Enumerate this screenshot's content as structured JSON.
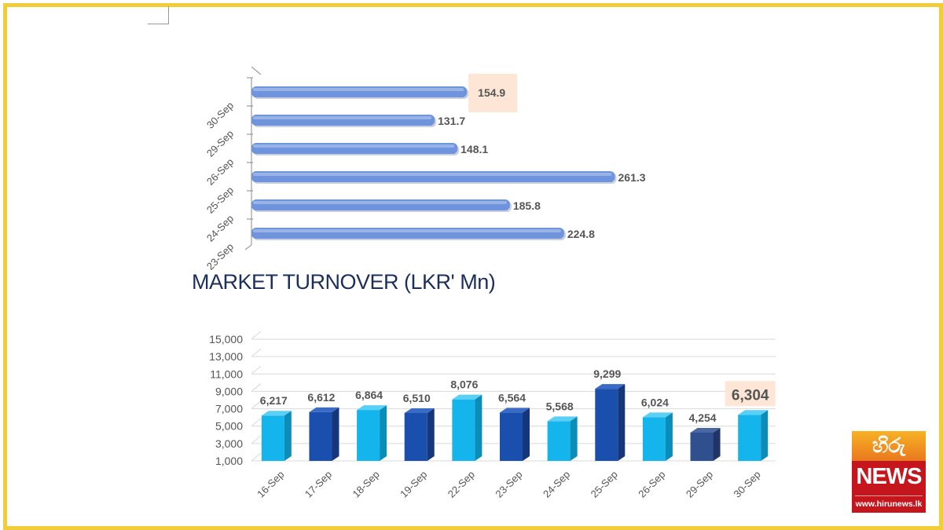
{
  "title": "MARKET TURNOVER (LKR' Mn)",
  "colors": {
    "frame": "#f2cd3a",
    "hbar": "#6f94db",
    "bar_light": "#14b4ec",
    "bar_dark": "#1b4fae",
    "bar_dark_last": "#2f4f8f",
    "highlight_bg": "#fde6d6",
    "label_text": "#555555"
  },
  "chart_data": [
    {
      "type": "bar",
      "orientation": "horizontal",
      "categories": [
        "23-Sep",
        "24-Sep",
        "25-Sep",
        "26-Sep",
        "29-Sep",
        "30-Sep"
      ],
      "values": [
        224.8,
        185.8,
        261.3,
        148.1,
        131.7,
        154.9
      ],
      "value_labels": [
        "224.8",
        "185.8",
        "261.3",
        "148.1",
        "131.7",
        "154.9"
      ],
      "highlighted": "30-Sep",
      "xlim": [
        0,
        300
      ]
    },
    {
      "type": "bar",
      "orientation": "vertical",
      "title": "MARKET TURNOVER (LKR' Mn)",
      "categories": [
        "16-Sep",
        "17-Sep",
        "18-Sep",
        "19-Sep",
        "22-Sep",
        "23-Sep",
        "24-Sep",
        "25-Sep",
        "26-Sep",
        "29-Sep",
        "30-Sep"
      ],
      "values": [
        6217,
        6612,
        6864,
        6510,
        8076,
        6564,
        5568,
        9299,
        6024,
        4254,
        6304
      ],
      "value_labels": [
        "6,217",
        "6,612",
        "6,864",
        "6,510",
        "8,076",
        "6,564",
        "5,568",
        "9,299",
        "6,024",
        "4,254",
        "6,304"
      ],
      "highlighted": "30-Sep",
      "ylim": [
        1000,
        15000
      ],
      "yticks": [
        1000,
        3000,
        5000,
        7000,
        9000,
        11000,
        13000,
        15000
      ],
      "ytick_labels": [
        "1,000",
        "3,000",
        "5,000",
        "7,000",
        "9,000",
        "11,000",
        "13,000",
        "15,000"
      ],
      "grid": true
    }
  ],
  "logo": {
    "script": "හිරු",
    "news": "NEWS",
    "url": "www.hirunews.lk"
  }
}
